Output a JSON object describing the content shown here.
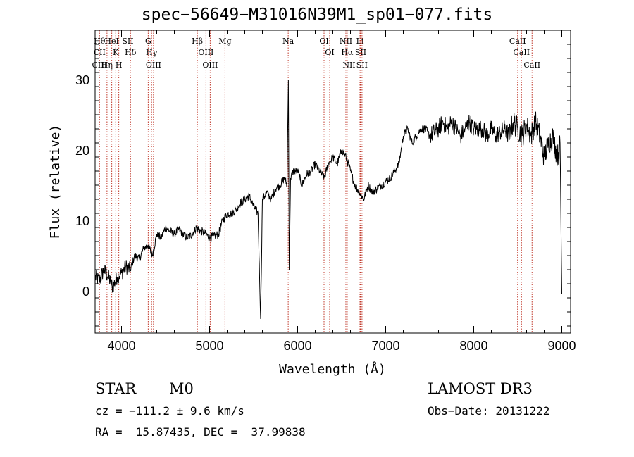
{
  "chart_data": {
    "type": "line",
    "title": "spec−56649−M31016N39M1_sp01−077.fits",
    "xlabel": "Wavelength (Å)",
    "ylabel": "Flux (relative)",
    "xlim": [
      3700,
      9100
    ],
    "ylim": [
      -6,
      37
    ],
    "xticks": [
      4000,
      5000,
      6000,
      7000,
      8000,
      9000
    ],
    "yticks": [
      0,
      10,
      20,
      30
    ],
    "grid": false,
    "series": [
      {
        "name": "flux",
        "x": [
          3700,
          3750,
          3800,
          3850,
          3900,
          3950,
          4000,
          4050,
          4100,
          4150,
          4200,
          4250,
          4300,
          4350,
          4400,
          4450,
          4500,
          4550,
          4600,
          4650,
          4700,
          4750,
          4800,
          4850,
          4900,
          4950,
          5000,
          5050,
          5100,
          5150,
          5200,
          5250,
          5300,
          5350,
          5400,
          5450,
          5500,
          5550,
          5580,
          5600,
          5650,
          5700,
          5750,
          5800,
          5850,
          5880,
          5895,
          5905,
          5920,
          5950,
          6000,
          6050,
          6100,
          6150,
          6200,
          6250,
          6300,
          6350,
          6400,
          6450,
          6500,
          6550,
          6600,
          6650,
          6700,
          6750,
          6800,
          6850,
          6900,
          6950,
          7000,
          7050,
          7100,
          7150,
          7200,
          7250,
          7300,
          7350,
          7400,
          7450,
          7500,
          7550,
          7600,
          7650,
          7700,
          7750,
          7800,
          7850,
          7900,
          7950,
          8000,
          8050,
          8100,
          8150,
          8200,
          8250,
          8300,
          8350,
          8400,
          8450,
          8500,
          8550,
          8600,
          8650,
          8700,
          8750,
          8800,
          8850,
          8900,
          8950,
          8980,
          9000
        ],
        "y": [
          2,
          1.5,
          3,
          2,
          0.5,
          2,
          2.5,
          3.5,
          3,
          5,
          4.5,
          6,
          6.5,
          5,
          8,
          7.5,
          9,
          8.5,
          8,
          8.8,
          8,
          7.5,
          8,
          9,
          8.5,
          8.2,
          7.5,
          7.8,
          8,
          10,
          11,
          11,
          11.5,
          12.5,
          13,
          13.5,
          12,
          11,
          -4,
          13,
          14,
          13,
          14.5,
          15,
          16,
          15,
          30,
          3,
          16,
          17,
          17,
          15,
          16.5,
          17,
          18,
          17,
          16,
          18,
          19,
          18,
          20,
          19,
          17,
          15,
          14,
          13,
          15,
          14,
          14.5,
          15,
          15.5,
          16,
          17,
          18,
          22,
          23,
          21,
          22,
          23,
          23,
          22,
          22.5,
          23,
          24,
          23,
          24,
          23,
          22,
          23,
          24,
          23,
          23,
          23,
          22,
          23,
          22,
          22.5,
          23,
          22,
          24,
          23,
          22,
          23.5,
          22,
          24,
          22,
          19,
          21,
          22,
          19,
          21,
          -0.5
        ]
      }
    ],
    "lines": [
      {
        "wl": 3750,
        "labels": [
          "Hθ",
          "CII",
          "CIII"
        ]
      },
      {
        "wl": 3835,
        "labels": [
          "Hη"
        ]
      },
      {
        "wl": 3889,
        "labels": [
          "HeI"
        ]
      },
      {
        "wl": 3934,
        "labels": [
          "K"
        ]
      },
      {
        "wl": 3969,
        "labels": [
          "H"
        ]
      },
      {
        "wl": 4072,
        "labels": [
          "SII"
        ]
      },
      {
        "wl": 4102,
        "labels": [
          "Hδ"
        ]
      },
      {
        "wl": 4303,
        "labels": [
          "G"
        ]
      },
      {
        "wl": 4341,
        "labels": [
          "Hγ"
        ]
      },
      {
        "wl": 4363,
        "labels": [
          "OIII"
        ]
      },
      {
        "wl": 4861,
        "labels": [
          "Hβ"
        ]
      },
      {
        "wl": 4959,
        "labels": [
          "OIII"
        ]
      },
      {
        "wl": 5007,
        "labels": [
          "OIII"
        ]
      },
      {
        "wl": 5175,
        "labels": [
          "Mg"
        ]
      },
      {
        "wl": 5893,
        "labels": [
          "Na"
        ]
      },
      {
        "wl": 6300,
        "labels": [
          "OI"
        ]
      },
      {
        "wl": 6364,
        "labels": [
          "OI"
        ]
      },
      {
        "wl": 6548,
        "labels": [
          "NII"
        ]
      },
      {
        "wl": 6563,
        "labels": [
          "Hα"
        ]
      },
      {
        "wl": 6584,
        "labels": [
          "NII"
        ]
      },
      {
        "wl": 6708,
        "labels": [
          "Li"
        ]
      },
      {
        "wl": 6716,
        "labels": [
          "SII"
        ]
      },
      {
        "wl": 6731,
        "labels": [
          "SII"
        ]
      },
      {
        "wl": 8498,
        "labels": [
          "CaII"
        ]
      },
      {
        "wl": 8542,
        "labels": [
          "CaII"
        ]
      },
      {
        "wl": 8662,
        "labels": [
          "CaII"
        ]
      }
    ]
  },
  "info": {
    "class": "STAR",
    "subclass": "M0",
    "survey": "LAMOST DR3",
    "cz": "cz = −111.2 ± 9.6 km/s",
    "obs_date": "Obs−Date: 20131222",
    "radec": "RA =  15.87435, DEC =  37.99838"
  }
}
